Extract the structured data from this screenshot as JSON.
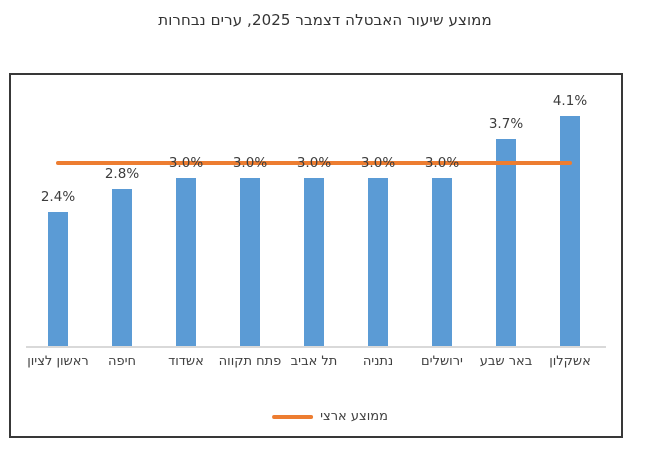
{
  "chart_data": {
    "type": "bar",
    "title": "ממוצע שיעור האבטלה דצמבר 2025, ערים נבחרות",
    "categories": [
      "ראשון לציון",
      "חיפה",
      "אשדוד",
      "פתח תקווה",
      "תל אביב",
      "נתניה",
      "ירושלים",
      "באר שבע",
      "אשקלון"
    ],
    "values": [
      2.4,
      2.8,
      3.0,
      3.0,
      3.0,
      3.0,
      3.0,
      3.7,
      4.1
    ],
    "value_labels": [
      "2.4%",
      "2.8%",
      "3.0%",
      "3.0%",
      "3.0%",
      "3.0%",
      "3.0%",
      "3.7%",
      "4.1%"
    ],
    "unit": "%",
    "reference_line": {
      "label": "ממוצע ארצי",
      "value_estimate": 3.3,
      "color": "#ED7D31"
    },
    "bar_color": "#5B9BD5",
    "axis_color": "#D9D9D9",
    "text_color": "#404040",
    "ylim": [
      0,
      4.85
    ],
    "grid": false,
    "y_axis_labels_shown": false,
    "legend_position": "bottom-center",
    "direction": "rtl"
  }
}
